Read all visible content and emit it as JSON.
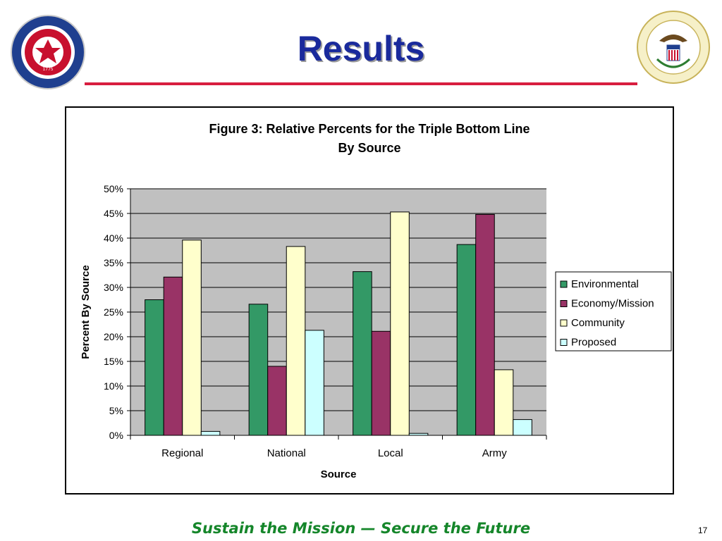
{
  "slide": {
    "title": "Results",
    "footer": "Sustain the Mission — Secure the Future",
    "page_number": "17",
    "accent_color": "#d81e3f",
    "title_color": "#1a2a9c",
    "footer_color": "#15862a"
  },
  "seals": {
    "left": {
      "icon": "army-secretary-seal-icon",
      "text": "OFFICE OF THE ASSISTANT SECRETARY OF THE ARMY",
      "year": "1775"
    },
    "right": {
      "icon": "aepi-seal-icon",
      "text": "ARMY ENVIRONMENTAL POLICY INSTITUTE"
    }
  },
  "chart_data": {
    "type": "bar",
    "title_lines": [
      "Figure 3: Relative Percents for the Triple Bottom Line",
      "By Source"
    ],
    "xlabel": "Source",
    "ylabel": "Percent By Source",
    "categories": [
      "Regional",
      "National",
      "Local",
      "Army"
    ],
    "series": [
      {
        "name": "Environmental",
        "color": "#339966",
        "values": [
          27.5,
          26.6,
          33.2,
          38.7
        ]
      },
      {
        "name": "Economy/Mission",
        "color": "#993366",
        "values": [
          32.1,
          14.0,
          21.1,
          44.8
        ]
      },
      {
        "name": "Community",
        "color": "#ffffcc",
        "values": [
          39.6,
          38.3,
          45.3,
          13.3
        ]
      },
      {
        "name": "Proposed",
        "color": "#ccffff",
        "values": [
          0.8,
          21.3,
          0.4,
          3.2
        ]
      }
    ],
    "ylim": [
      0,
      50
    ],
    "y_ticks": [
      0,
      5,
      10,
      15,
      20,
      25,
      30,
      35,
      40,
      45,
      50
    ],
    "y_tick_labels": [
      "0%",
      "5%",
      "10%",
      "15%",
      "20%",
      "25%",
      "30%",
      "35%",
      "40%",
      "45%",
      "50%"
    ],
    "grid": true,
    "plot_background": "#c0c0c0",
    "legend_position": "right"
  }
}
